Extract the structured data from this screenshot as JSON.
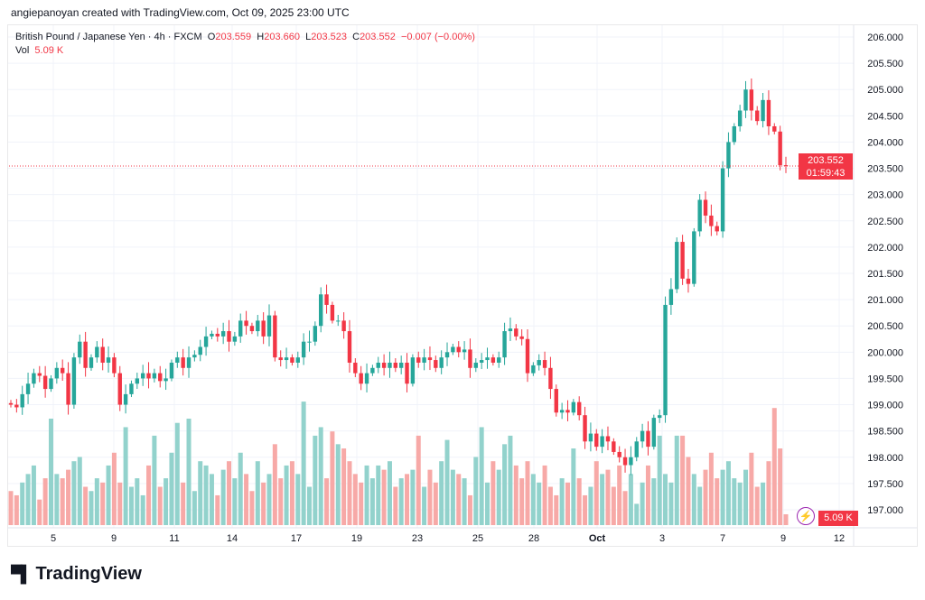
{
  "credit": "angiepanoyan created with TradingView.com, Oct 09, 2025 23:00 UTC",
  "legend": {
    "symbol": "British Pound / Japanese Yen · 4h · FXCM",
    "o_label": "O",
    "o": "203.559",
    "h_label": "H",
    "h": "203.660",
    "l_label": "L",
    "l": "203.523",
    "c_label": "C",
    "c": "203.552",
    "change": "−0.007 (−0.00%)",
    "vol_label": "Vol",
    "vol": "5.09 K"
  },
  "price_tag": {
    "price": "203.552",
    "countdown": "01:59:43"
  },
  "vol_tag": "5.09 K",
  "logo_text": "TradingView",
  "colors": {
    "up": "#26a69a",
    "down": "#f23645",
    "vol_up": "#92d2cc",
    "vol_down": "#f7a9a7",
    "accent": "#9c27b0"
  },
  "chart_data": {
    "type": "candlestick",
    "title": "British Pound / Japanese Yen · 4h · FXCM",
    "y_ticks": [
      "206.000",
      "205.500",
      "205.000",
      "204.500",
      "204.000",
      "203.500",
      "203.000",
      "202.500",
      "202.000",
      "201.500",
      "201.000",
      "200.500",
      "200.000",
      "199.500",
      "199.000",
      "198.500",
      "198.000",
      "197.500",
      "197.000"
    ],
    "ylim": [
      197.0,
      206.0
    ],
    "x_ticks": [
      "5",
      "9",
      "11",
      "14",
      "17",
      "19",
      "23",
      "25",
      "28",
      "Oct",
      "3",
      "7",
      "9",
      "12"
    ],
    "close": [
      199.0,
      198.95,
      199.2,
      199.4,
      199.6,
      199.55,
      199.3,
      199.5,
      199.7,
      199.6,
      199.0,
      199.9,
      200.2,
      199.7,
      199.9,
      200.1,
      199.8,
      199.9,
      199.6,
      199.0,
      199.2,
      199.4,
      199.5,
      199.6,
      199.5,
      199.6,
      199.45,
      199.5,
      199.8,
      199.9,
      199.7,
      199.9,
      199.95,
      200.1,
      200.3,
      200.35,
      200.3,
      200.4,
      200.2,
      200.3,
      200.6,
      200.5,
      200.4,
      200.6,
      200.3,
      200.7,
      199.9,
      199.85,
      199.9,
      199.8,
      199.9,
      200.2,
      200.2,
      200.5,
      201.1,
      200.9,
      200.6,
      200.6,
      200.4,
      199.8,
      199.6,
      199.4,
      199.6,
      199.7,
      199.8,
      199.7,
      199.8,
      199.7,
      199.8,
      199.4,
      199.9,
      199.8,
      199.9,
      199.85,
      199.7,
      199.9,
      200.0,
      200.1,
      200.0,
      200.05,
      199.7,
      199.8,
      199.85,
      199.9,
      199.8,
      199.9,
      200.4,
      200.45,
      200.3,
      200.25,
      199.6,
      199.75,
      199.85,
      199.7,
      199.3,
      198.85,
      198.9,
      198.85,
      199.05,
      198.8,
      198.3,
      198.45,
      198.2,
      198.4,
      198.3,
      198.1,
      198.0,
      197.85,
      198.0,
      198.3,
      198.5,
      198.2,
      198.75,
      198.8,
      200.9,
      201.2,
      202.1,
      201.4,
      201.3,
      202.3,
      202.9,
      202.6,
      202.4,
      202.3,
      203.5,
      204.0,
      204.3,
      204.6,
      205.0,
      204.6,
      204.4,
      204.8,
      204.3,
      204.2,
      203.56,
      203.552
    ],
    "volume_k": [
      16,
      14,
      20,
      24,
      28,
      12,
      22,
      50,
      24,
      22,
      26,
      30,
      32,
      18,
      16,
      22,
      20,
      28,
      34,
      20,
      46,
      18,
      22,
      14,
      28,
      42,
      18,
      22,
      34,
      48,
      20,
      50,
      16,
      30,
      28,
      24,
      14,
      26,
      30,
      22,
      34,
      24,
      16,
      30,
      20,
      24,
      38,
      22,
      28,
      30,
      24,
      58,
      18,
      42,
      46,
      22,
      44,
      38,
      36,
      30,
      24,
      20,
      28,
      22,
      28,
      26,
      30,
      18,
      22,
      24,
      26,
      42,
      18,
      26,
      20,
      30,
      40,
      26,
      24,
      22,
      14,
      32,
      46,
      20,
      30,
      26,
      38,
      42,
      28,
      22,
      30,
      24,
      20,
      28,
      18,
      14,
      22,
      20,
      36,
      22,
      14,
      18,
      30,
      24,
      26,
      18,
      28,
      16,
      24,
      10,
      20,
      28,
      22,
      42,
      24,
      20,
      42,
      42,
      32,
      24,
      18,
      26,
      34,
      22,
      26,
      30,
      22,
      20,
      26,
      34,
      18,
      20,
      30,
      55,
      36,
      5.09
    ]
  }
}
